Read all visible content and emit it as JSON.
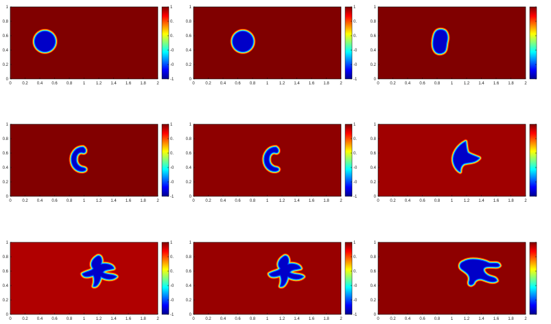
{
  "chart_data": {
    "type": "heatmap",
    "layout": "3x3 grid of pseudocolor field snapshots",
    "colormap": "jet",
    "panels": [
      {
        "xlim": [
          0,
          2
        ],
        "ylim": [
          0,
          1
        ],
        "xticks": [
          "0",
          "0.2",
          "0.4",
          "0.6",
          "0.8",
          "1",
          "1.2",
          "1.4",
          "1.6",
          "1.8",
          "2"
        ],
        "yticks": [
          "0",
          "0.2",
          "0.4",
          "0.6",
          "0.8",
          "1"
        ],
        "background_value": 1,
        "interior_value": -1,
        "background_color": "#800000",
        "colorbar_ticks": [
          "1",
          "0.",
          "0.",
          "-0",
          "-0",
          "-1"
        ],
        "blob": {
          "shape": "circle",
          "center": [
            0.47,
            0.52
          ]
        }
      },
      {
        "xlim": [
          0,
          2
        ],
        "ylim": [
          0,
          1
        ],
        "xticks": [
          "0",
          "0.2",
          "0.4",
          "0.6",
          "0.8",
          "1",
          "1.2",
          "1.4",
          "1.6",
          "1.8",
          "2"
        ],
        "yticks": [
          "0",
          "0.2",
          "0.4",
          "0.6",
          "0.8",
          "1"
        ],
        "background_value": 1,
        "interior_value": -1,
        "background_color": "#800000",
        "colorbar_ticks": [
          "1",
          "0.",
          "0.",
          "-0",
          "-0",
          "-1"
        ],
        "blob": {
          "shape": "circle",
          "center": [
            0.67,
            0.52
          ]
        }
      },
      {
        "xlim": [
          0,
          2
        ],
        "ylim": [
          0,
          1
        ],
        "xticks": [
          "0",
          "0.2",
          "0.4",
          "0.6",
          "0.8",
          "1",
          "1.2",
          "1.4",
          "1.6",
          "1.8",
          "2"
        ],
        "yticks": [
          "0",
          "0.2",
          "0.4",
          "0.6",
          "0.8",
          "1"
        ],
        "background_value": 1,
        "interior_value": -1,
        "background_color": "#800000",
        "colorbar_ticks": [
          "",
          "",
          "",
          "",
          "",
          ""
        ],
        "blob": {
          "shape": "oval",
          "center": [
            0.85,
            0.52
          ]
        }
      },
      {
        "xlim": [
          0,
          2
        ],
        "ylim": [
          0,
          1
        ],
        "xticks": [
          "0",
          "0.2",
          "0.4",
          "0.6",
          "0.8",
          "1",
          "1.2",
          "1.4",
          "1.6",
          "1.8",
          "2"
        ],
        "yticks": [
          "0",
          "0.2",
          "0.4",
          "0.6",
          "0.8",
          "1"
        ],
        "background_value": 1,
        "interior_value": -1,
        "background_color": "#820000",
        "colorbar_ticks": [
          "1",
          "0.",
          "0.",
          "-0",
          "-0",
          "-1"
        ],
        "blob": {
          "shape": "crescent",
          "center": [
            0.95,
            0.52
          ]
        }
      },
      {
        "xlim": [
          0,
          2
        ],
        "ylim": [
          0,
          1
        ],
        "xticks": [
          "0",
          "0.2",
          "0.4",
          "0.6",
          "0.8",
          "1",
          "1.2",
          "1.4",
          "1.6",
          "1.8",
          "2"
        ],
        "yticks": [
          "0",
          "0.2",
          "0.4",
          "0.6",
          "0.8",
          "1"
        ],
        "background_value": 1,
        "interior_value": -1,
        "background_color": "#8e0000",
        "colorbar_ticks": [
          "1",
          "0.",
          "0.",
          "-0",
          "-0",
          "-1"
        ],
        "blob": {
          "shape": "crescent",
          "center": [
            1.08,
            0.52
          ]
        }
      },
      {
        "xlim": [
          0,
          2
        ],
        "ylim": [
          0,
          1
        ],
        "xticks": [
          "0",
          "0.2",
          "0.4",
          "0.6",
          "0.8",
          "1",
          "1.2",
          "1.4",
          "1.6",
          "1.8",
          "2"
        ],
        "yticks": [
          "0",
          "0.2",
          "0.4",
          "0.6",
          "0.8",
          "1"
        ],
        "background_value": 1,
        "interior_value": -1,
        "background_color": "#a00000",
        "colorbar_ticks": [
          "",
          "",
          "",
          "",
          "",
          ""
        ],
        "blob": {
          "shape": "arrowhead",
          "center": [
            1.15,
            0.55
          ]
        }
      },
      {
        "xlim": [
          0,
          2
        ],
        "ylim": [
          0,
          1
        ],
        "xticks": [
          "0",
          "0.2",
          "0.4",
          "0.6",
          "0.8",
          "1",
          "1.2",
          "1.4",
          "1.6",
          "1.8",
          "2"
        ],
        "yticks": [
          "0",
          "0.2",
          "0.4",
          "0.6",
          "0.8",
          "1"
        ],
        "background_value": 1,
        "interior_value": -1,
        "background_color": "#b00000",
        "colorbar_ticks": [
          "1",
          "0.",
          "0.",
          "-0",
          "-0",
          "-1"
        ],
        "blob": {
          "shape": "star",
          "center": [
            1.2,
            0.6
          ]
        }
      },
      {
        "xlim": [
          0,
          2
        ],
        "ylim": [
          0,
          1
        ],
        "xticks": [
          "0",
          "0.2",
          "0.4",
          "0.6",
          "0.8",
          "1",
          "1.2",
          "1.4",
          "1.6",
          "1.8",
          "2"
        ],
        "yticks": [
          "0",
          "0.2",
          "0.4",
          "0.6",
          "0.8",
          "1"
        ],
        "background_value": 1,
        "interior_value": -1,
        "background_color": "#980000",
        "colorbar_ticks": [
          "1",
          "0.",
          "0.",
          "-0",
          "-0",
          "-1"
        ],
        "blob": {
          "shape": "star",
          "center": [
            1.25,
            0.6
          ]
        }
      },
      {
        "xlim": [
          0,
          2
        ],
        "ylim": [
          0,
          1
        ],
        "xticks": [
          "0",
          "0.2",
          "0.4",
          "0.6",
          "0.8",
          "1",
          "1.2",
          "1.4",
          "1.6",
          "1.8",
          "2"
        ],
        "yticks": [
          "0",
          "0.2",
          "0.4",
          "0.6",
          "0.8",
          "1"
        ],
        "background_value": 1,
        "interior_value": -1,
        "background_color": "#8e0000",
        "colorbar_ticks": [
          "",
          "",
          "",
          "",
          "",
          ""
        ],
        "blob": {
          "shape": "filament",
          "center": [
            1.35,
            0.62
          ]
        }
      }
    ]
  }
}
